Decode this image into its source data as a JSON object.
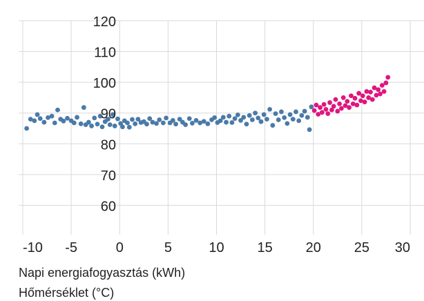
{
  "chart_data": {
    "type": "scatter",
    "title": "",
    "xlabel": "Hőmérséklet (°C)",
    "ylabel": "Napi energiafogyasztás (kWh)",
    "xlim": [
      -10,
      30
    ],
    "ylim": [
      50,
      120
    ],
    "grid": true,
    "x_ticks": [
      "-10",
      "-5",
      "0",
      "5",
      "10",
      "15",
      "20",
      "25",
      "30"
    ],
    "y_ticks": [
      "60",
      "70",
      "80",
      "90",
      "100",
      "110",
      "120"
    ],
    "colors": {
      "below_20": "#4a7aa8",
      "above_20": "#e0157f",
      "grid": "#d9d9d9"
    },
    "series": [
      {
        "color": "#4a7aa8",
        "points": [
          [
            -9.6,
            85.0
          ],
          [
            -9.2,
            88.0
          ],
          [
            -8.8,
            87.5
          ],
          [
            -8.5,
            89.5
          ],
          [
            -8.2,
            88.2
          ],
          [
            -7.8,
            87.0
          ],
          [
            -7.4,
            88.5
          ],
          [
            -7.0,
            89.0
          ],
          [
            -6.7,
            86.8
          ],
          [
            -6.4,
            91.0
          ],
          [
            -6.1,
            88.0
          ],
          [
            -5.8,
            87.4
          ],
          [
            -5.4,
            88.3
          ],
          [
            -5.0,
            87.5
          ],
          [
            -4.7,
            86.8
          ],
          [
            -4.4,
            88.6
          ],
          [
            -4.0,
            86.5
          ],
          [
            -3.7,
            91.8
          ],
          [
            -3.5,
            86.2
          ],
          [
            -3.2,
            87.0
          ],
          [
            -2.9,
            85.8
          ],
          [
            -2.6,
            88.4
          ],
          [
            -2.3,
            86.4
          ],
          [
            -2.0,
            89.0
          ],
          [
            -1.8,
            85.5
          ],
          [
            -1.5,
            87.2
          ],
          [
            -1.2,
            88.0
          ],
          [
            -1.0,
            86.2
          ],
          [
            -0.7,
            89.5
          ],
          [
            -0.5,
            85.8
          ],
          [
            -0.2,
            88.1
          ],
          [
            0.1,
            86.6
          ],
          [
            0.3,
            85.5
          ],
          [
            0.5,
            87.5
          ],
          [
            0.8,
            86.8
          ],
          [
            1.0,
            85.4
          ],
          [
            1.3,
            87.9
          ],
          [
            1.6,
            86.5
          ],
          [
            1.9,
            88.0
          ],
          [
            2.2,
            86.9
          ],
          [
            2.5,
            87.2
          ],
          [
            2.8,
            86.4
          ],
          [
            3.1,
            88.2
          ],
          [
            3.4,
            87.0
          ],
          [
            3.8,
            86.6
          ],
          [
            4.1,
            87.8
          ],
          [
            4.5,
            86.8
          ],
          [
            4.8,
            88.4
          ],
          [
            5.2,
            86.8
          ],
          [
            5.5,
            87.6
          ],
          [
            5.8,
            86.4
          ],
          [
            6.2,
            88.0
          ],
          [
            6.5,
            87.0
          ],
          [
            6.8,
            86.2
          ],
          [
            7.2,
            88.2
          ],
          [
            7.5,
            86.7
          ],
          [
            7.9,
            87.6
          ],
          [
            8.3,
            86.8
          ],
          [
            8.7,
            87.3
          ],
          [
            9.1,
            86.5
          ],
          [
            9.5,
            87.8
          ],
          [
            9.8,
            88.5
          ],
          [
            10.1,
            86.9
          ],
          [
            10.4,
            87.5
          ],
          [
            10.7,
            88.6
          ],
          [
            11.0,
            87.0
          ],
          [
            11.3,
            89.0
          ],
          [
            11.6,
            86.9
          ],
          [
            11.9,
            88.2
          ],
          [
            12.2,
            89.4
          ],
          [
            12.5,
            87.6
          ],
          [
            12.8,
            88.6
          ],
          [
            13.1,
            86.4
          ],
          [
            13.4,
            89.2
          ],
          [
            13.7,
            87.8
          ],
          [
            14.0,
            90.0
          ],
          [
            14.3,
            88.4
          ],
          [
            14.6,
            87.2
          ],
          [
            14.9,
            89.5
          ],
          [
            15.2,
            88.0
          ],
          [
            15.5,
            91.2
          ],
          [
            15.8,
            86.0
          ],
          [
            16.1,
            89.8
          ],
          [
            16.4,
            87.8
          ],
          [
            16.7,
            90.4
          ],
          [
            17.0,
            88.5
          ],
          [
            17.3,
            86.6
          ],
          [
            17.6,
            89.5
          ],
          [
            17.9,
            88.0
          ],
          [
            18.2,
            90.4
          ],
          [
            18.5,
            87.5
          ],
          [
            18.8,
            89.2
          ],
          [
            19.1,
            90.6
          ],
          [
            19.4,
            88.6
          ],
          [
            19.6,
            84.6
          ],
          [
            19.8,
            92.0
          ]
        ]
      },
      {
        "color": "#e0157f",
        "points": [
          [
            20.1,
            90.8
          ],
          [
            20.3,
            92.6
          ],
          [
            20.5,
            89.6
          ],
          [
            20.7,
            91.8
          ],
          [
            20.9,
            90.2
          ],
          [
            21.1,
            92.8
          ],
          [
            21.3,
            91.2
          ],
          [
            21.5,
            89.8
          ],
          [
            21.7,
            93.4
          ],
          [
            21.9,
            91.0
          ],
          [
            22.1,
            92.2
          ],
          [
            22.3,
            94.4
          ],
          [
            22.5,
            90.6
          ],
          [
            22.7,
            93.0
          ],
          [
            22.9,
            91.5
          ],
          [
            23.1,
            95.0
          ],
          [
            23.3,
            92.4
          ],
          [
            23.5,
            93.8
          ],
          [
            23.7,
            91.8
          ],
          [
            23.9,
            95.6
          ],
          [
            24.1,
            93.0
          ],
          [
            24.3,
            94.8
          ],
          [
            24.5,
            92.6
          ],
          [
            24.7,
            96.4
          ],
          [
            24.9,
            94.0
          ],
          [
            25.1,
            95.6
          ],
          [
            25.3,
            93.6
          ],
          [
            25.5,
            97.0
          ],
          [
            25.7,
            95.0
          ],
          [
            25.9,
            96.8
          ],
          [
            26.1,
            94.4
          ],
          [
            26.3,
            98.2
          ],
          [
            26.5,
            95.8
          ],
          [
            26.7,
            97.6
          ],
          [
            26.9,
            96.2
          ],
          [
            27.1,
            99.0
          ],
          [
            27.3,
            97.0
          ],
          [
            27.5,
            99.8
          ],
          [
            27.7,
            101.6
          ]
        ]
      }
    ]
  }
}
